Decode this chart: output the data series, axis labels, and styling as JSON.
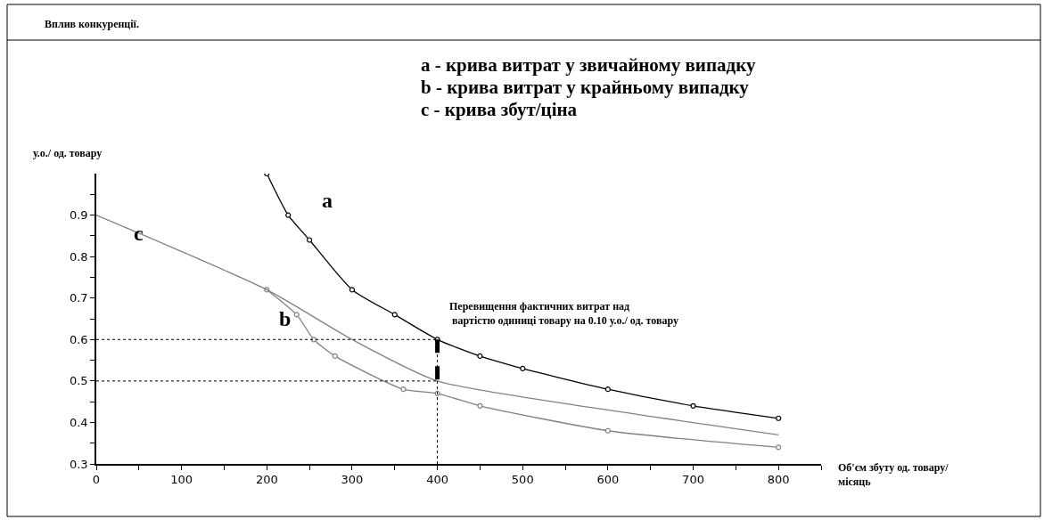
{
  "chart_data": {
    "type": "line",
    "title": "Вплив конкуренції.",
    "xlabel": "Об'єм збуту од. товару/\nмісяць",
    "ylabel": "у.о./ од. товару",
    "annotations": [
      "a - крива витрат у звичайному випадку",
      "b - крива витрат у крайньому випадку",
      "c - крива збут/ціна",
      "Перевищення фактичних витрат над\n вартістю одиниці товару на 0.10 у.о./ од. товару"
    ],
    "series": [
      {
        "name": "a",
        "color": "#000000",
        "marker": "circle",
        "x": [
          200,
          225,
          250,
          300,
          350,
          400,
          450,
          500,
          600,
          700,
          800
        ],
        "values": [
          1.0,
          0.9,
          0.84,
          0.72,
          0.66,
          0.6,
          0.56,
          0.53,
          0.48,
          0.44,
          0.41
        ]
      },
      {
        "name": "b",
        "color": "#808080",
        "marker": "circle",
        "x": [
          200,
          235,
          255,
          280,
          360,
          400,
          450,
          600,
          800
        ],
        "values": [
          0.72,
          0.66,
          0.6,
          0.56,
          0.48,
          0.47,
          0.44,
          0.38,
          0.34
        ]
      },
      {
        "name": "c",
        "color": "#808080",
        "marker": "none",
        "x": [
          0,
          200,
          300,
          400,
          600,
          800
        ],
        "values": [
          0.9,
          0.72,
          0.6,
          0.5,
          0.43,
          0.37
        ]
      },
      {
        "color": "#000000",
        "line_style": "dashed",
        "marker": "none",
        "x": [
          400,
          400
        ],
        "values": [
          0.6,
          0.5
        ]
      }
    ],
    "ref_lines": [
      {
        "axis": "y",
        "value": 0.6,
        "line_style": "dotted",
        "color": "#000000"
      },
      {
        "axis": "y",
        "value": 0.5,
        "line_style": "dotted",
        "color": "#000000"
      },
      {
        "axis": "x",
        "value": 400,
        "line_style": "dotted",
        "color": "#000000"
      }
    ],
    "xlim": [
      0,
      850
    ],
    "ylim": [
      0.3,
      1.0
    ],
    "xticks": [
      0,
      {
        "value": 50,
        "label": null
      },
      100,
      {
        "value": 150,
        "label": null
      },
      200,
      {
        "value": 250,
        "label": null
      },
      300,
      {
        "value": 350,
        "label": null
      },
      400,
      {
        "value": 450,
        "label": null
      },
      500,
      {
        "value": 550,
        "label": null
      },
      600,
      {
        "value": 650,
        "label": null
      },
      700,
      {
        "value": 750,
        "label": null
      },
      800,
      {
        "value": 850,
        "label": null
      }
    ],
    "yticks": [
      0.3,
      {
        "value": 0.35,
        "label": null
      },
      0.4,
      {
        "value": 0.45,
        "label": null
      },
      0.5,
      {
        "value": 0.55,
        "label": null
      },
      0.6,
      {
        "value": 0.65,
        "label": null
      },
      0.7,
      {
        "value": 0.75,
        "label": null
      },
      0.8,
      {
        "value": 0.85,
        "label": null
      },
      0.9,
      {
        "value": 0.95,
        "label": null
      }
    ],
    "legend": false
  }
}
